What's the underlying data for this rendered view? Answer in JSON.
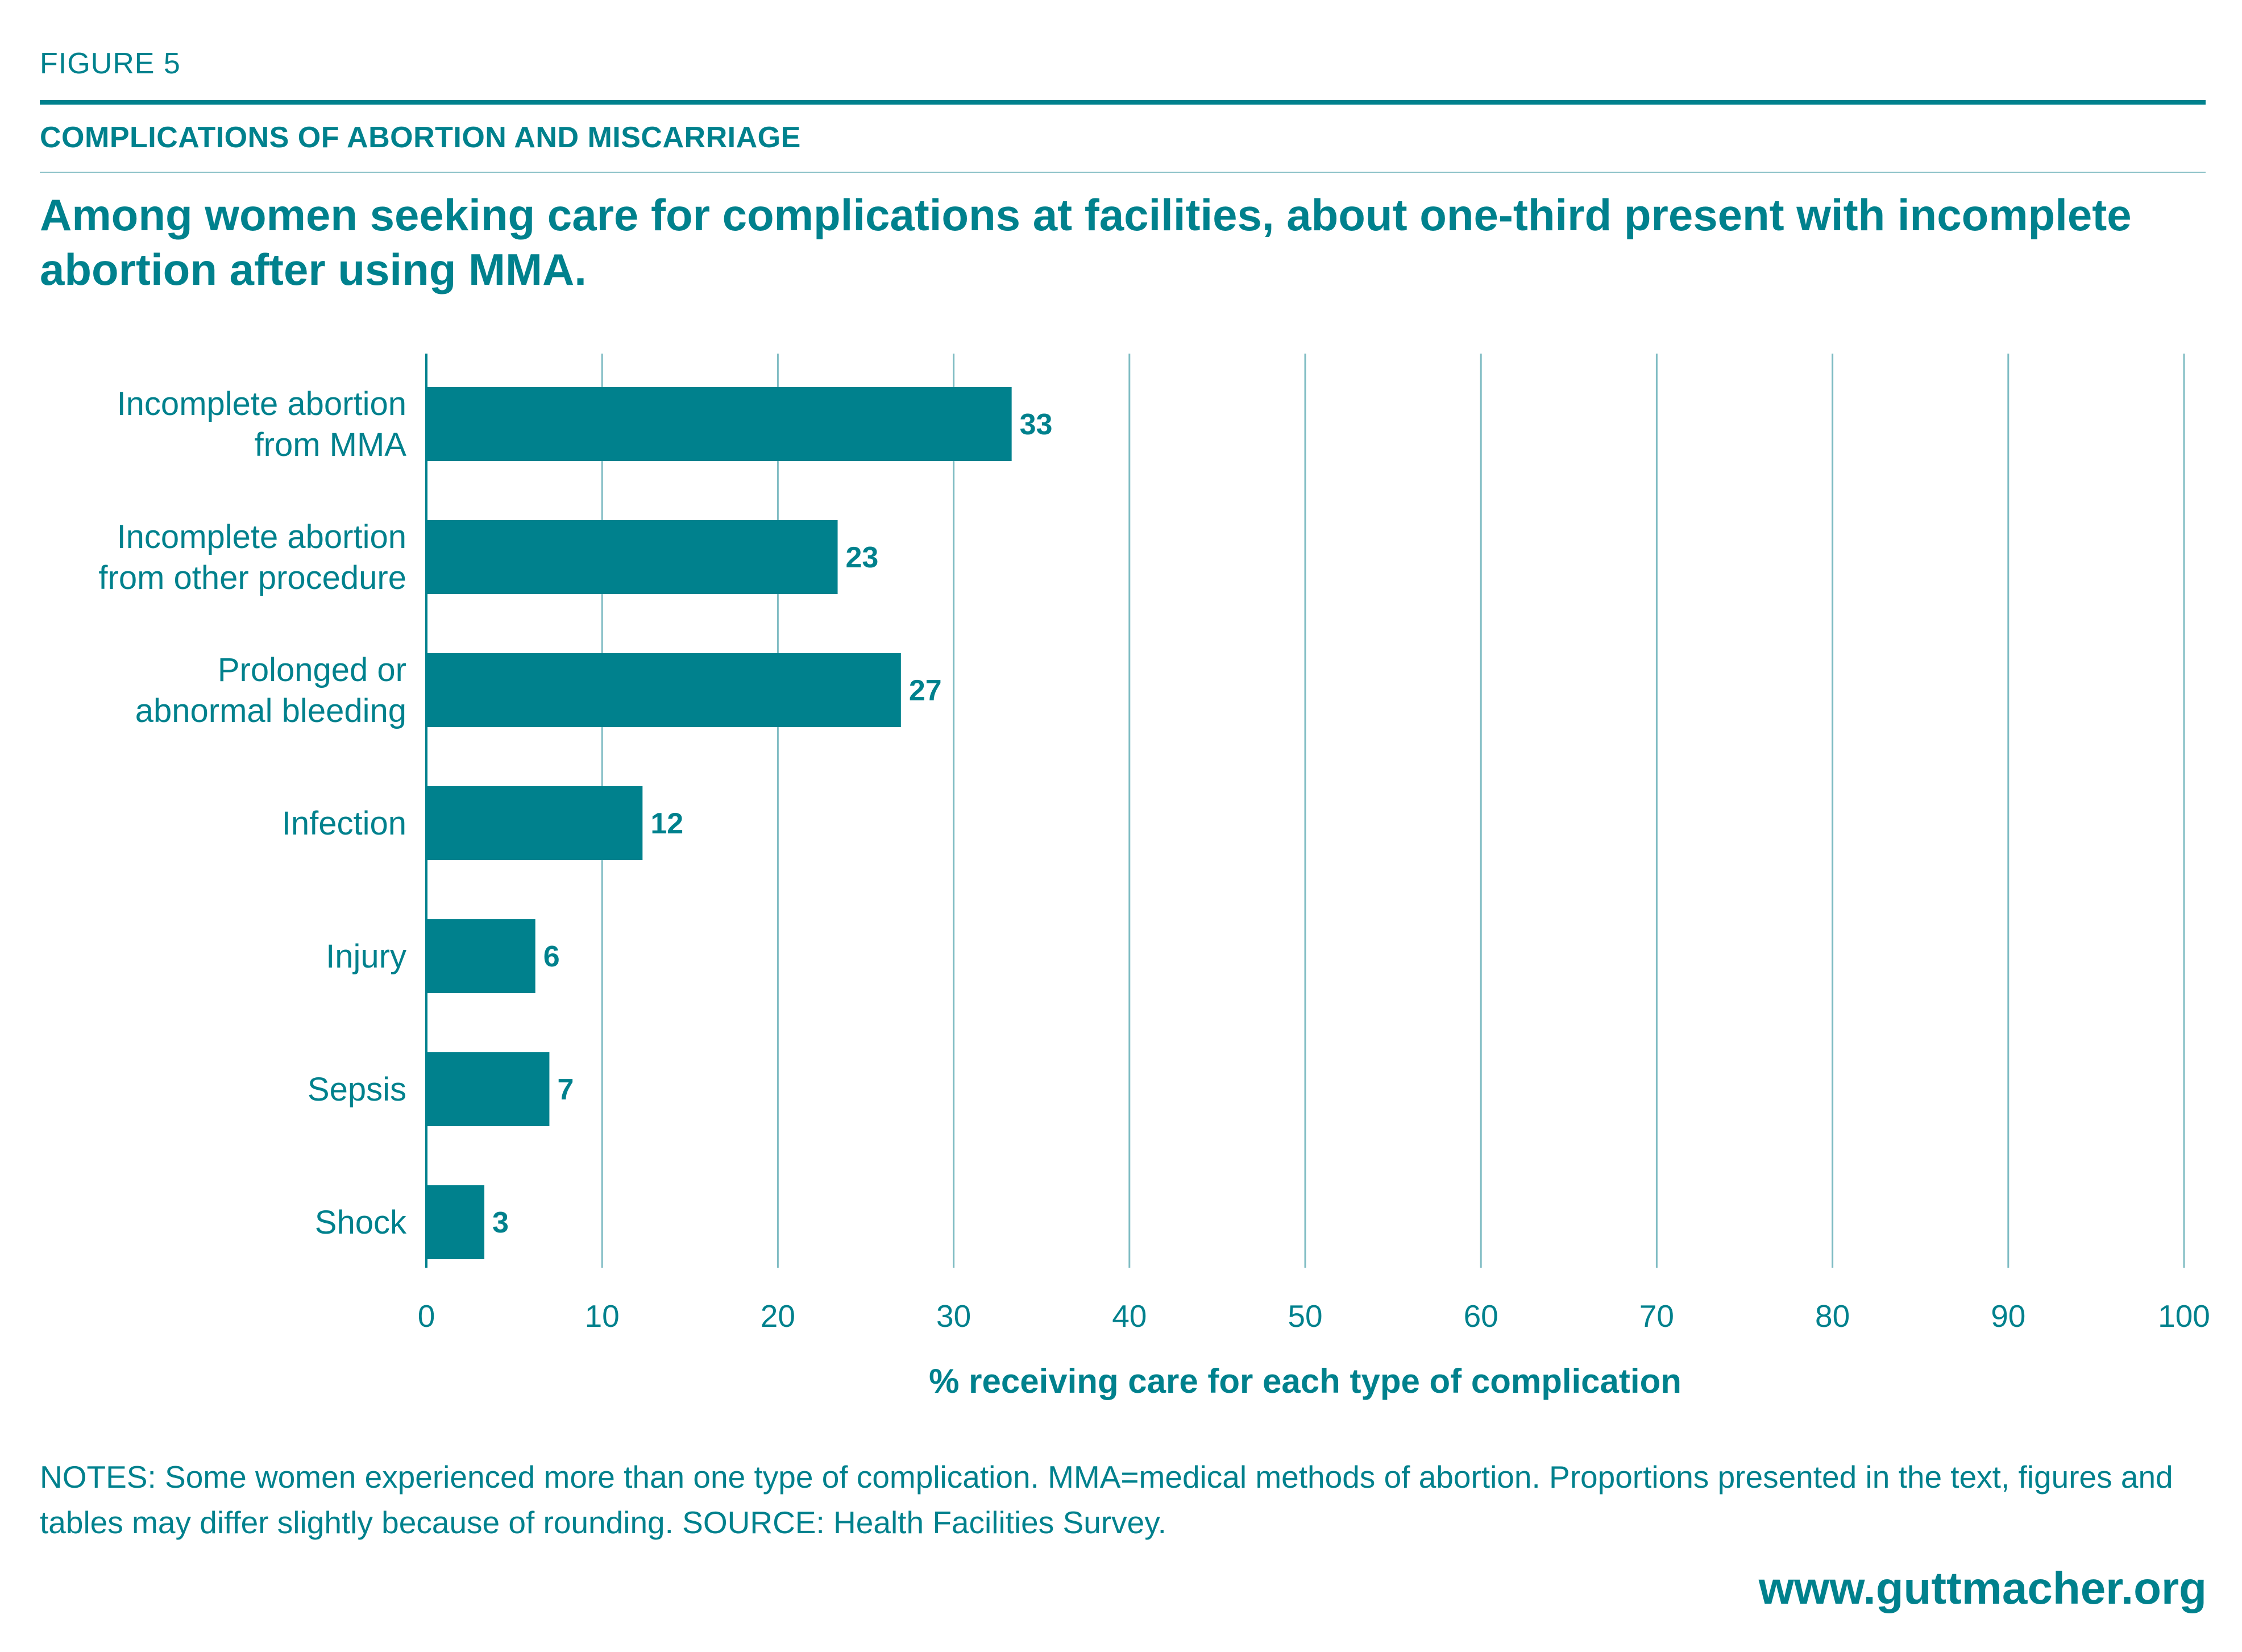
{
  "header": {
    "figure_label": "FIGURE 5",
    "kicker": "COMPLICATIONS OF ABORTION AND MISCARRIAGE",
    "headline": "Among women seeking care for complications at facilities, about one-third present with incomplete abortion after using MMA."
  },
  "chart_data": {
    "type": "bar",
    "orientation": "horizontal",
    "categories": [
      [
        "Incomplete abortion",
        "from MMA"
      ],
      [
        "Incomplete abortion",
        "from other procedure"
      ],
      [
        "Prolonged or",
        "abnormal bleeding"
      ],
      [
        "Infection"
      ],
      [
        "Injury"
      ],
      [
        "Sepsis"
      ],
      [
        "Shock"
      ]
    ],
    "values": [
      33.3,
      23.4,
      27.0,
      12.3,
      6.2,
      7.0,
      3.3
    ],
    "value_labels": [
      "33",
      "23",
      "27",
      "12",
      "6",
      "7",
      "3"
    ],
    "xlabel": "% receiving care for each type of complication",
    "xlim": [
      0,
      100
    ],
    "xticks": [
      0,
      10,
      20,
      30,
      40,
      50,
      60,
      70,
      80,
      90,
      100
    ],
    "grid": "vertical",
    "legend": "none",
    "bar_color": "#00818d",
    "grid_color": "#7fbcc3"
  },
  "footer": {
    "notes": "NOTES: Some women experienced more than one type of complication. MMA=medical methods of abortion. Proportions presented in the text, figures and tables may differ slightly because of rounding. SOURCE: Health Facilities Survey.",
    "url": "www.guttmacher.org"
  }
}
